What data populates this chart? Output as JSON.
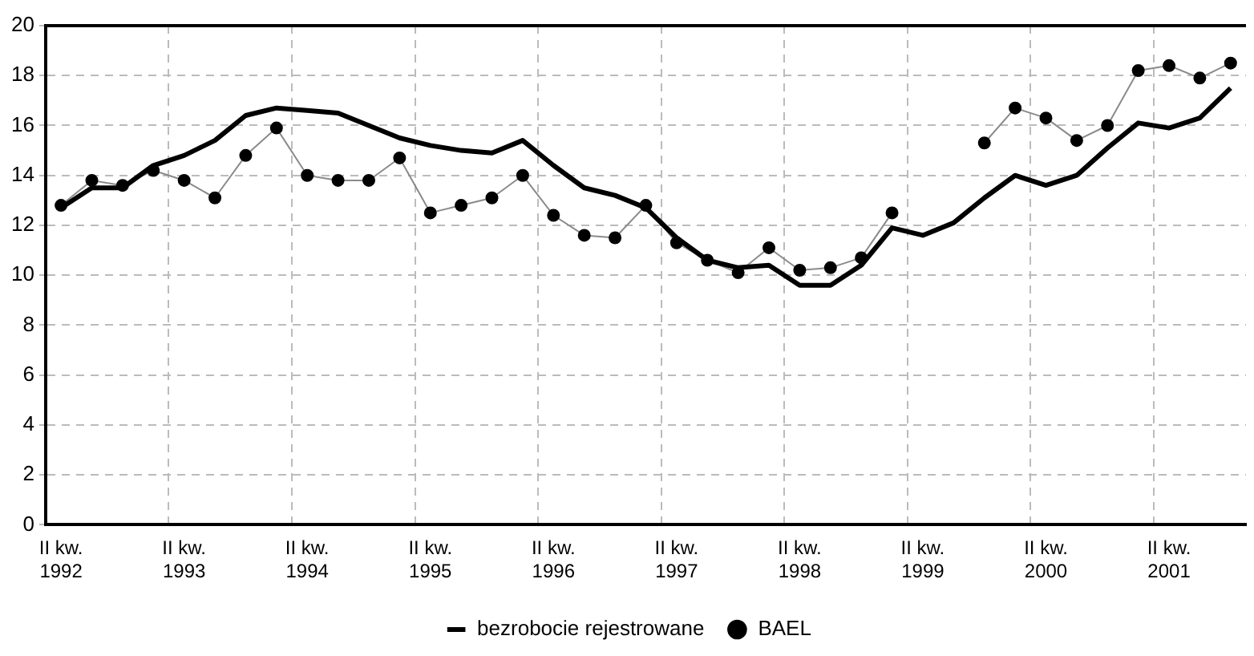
{
  "chart_data": {
    "type": "line",
    "categories": [
      "II kw.\n1992",
      null,
      null,
      null,
      "II kw.\n1993",
      null,
      null,
      null,
      "II kw.\n1994",
      null,
      null,
      null,
      "II kw.\n1995",
      null,
      null,
      null,
      "II kw.\n1996",
      null,
      null,
      null,
      "II kw.\n1997",
      null,
      null,
      null,
      "II kw.\n1998",
      null,
      null,
      null,
      "II kw.\n1999",
      null,
      null,
      null,
      "II kw.\n2000",
      null,
      null,
      null,
      "II kw.\n2001",
      null,
      null
    ],
    "series": [
      {
        "name": "bezrobocie rejestrowane",
        "color": "#000000",
        "marker": "none",
        "values": [
          12.7,
          13.5,
          13.5,
          14.4,
          14.8,
          15.4,
          16.4,
          16.7,
          16.6,
          16.5,
          16.0,
          15.5,
          15.2,
          15.0,
          14.9,
          15.4,
          14.4,
          13.5,
          13.2,
          12.7,
          11.5,
          10.6,
          10.3,
          10.4,
          9.6,
          9.6,
          10.4,
          11.9,
          11.6,
          12.1,
          13.1,
          14.0,
          13.6,
          14.0,
          15.1,
          16.1,
          15.9,
          16.3,
          17.5
        ]
      },
      {
        "name": "BAEL",
        "color": "#000000",
        "marker": "circle",
        "values": [
          12.8,
          13.8,
          13.6,
          14.2,
          13.8,
          13.1,
          14.8,
          15.9,
          14.0,
          13.8,
          13.8,
          14.7,
          12.5,
          12.8,
          13.1,
          14.0,
          12.4,
          11.6,
          11.5,
          12.8,
          11.3,
          10.6,
          10.1,
          11.1,
          10.2,
          10.3,
          10.7,
          12.5,
          null,
          null,
          15.3,
          16.7,
          16.3,
          15.4,
          16.0,
          18.2,
          18.4,
          17.9,
          18.5
        ]
      }
    ],
    "ylim": [
      0,
      20
    ],
    "yticks": [
      0,
      2,
      4,
      6,
      8,
      10,
      12,
      14,
      16,
      18,
      20
    ],
    "grid": true,
    "legend": "bottom"
  }
}
